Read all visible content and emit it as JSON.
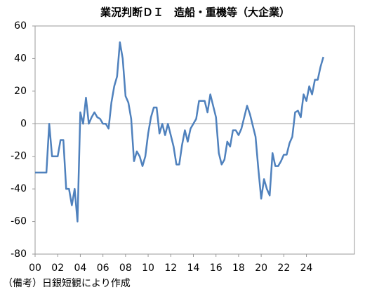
{
  "chart_data": {
    "type": "line",
    "title": "業況判断ＤＩ　造船・重機等（大企業）",
    "note": "（備考）日銀短観により作成",
    "color": "#4f81bd",
    "x": [
      2000,
      2000.25,
      2000.5,
      2000.75,
      2001,
      2001.25,
      2001.5,
      2001.75,
      2002,
      2002.25,
      2002.5,
      2002.75,
      2003,
      2003.25,
      2003.5,
      2003.75,
      2004,
      2004.25,
      2004.5,
      2004.75,
      2005,
      2005.25,
      2005.5,
      2005.75,
      2006,
      2006.25,
      2006.5,
      2006.75,
      2007,
      2007.25,
      2007.5,
      2007.75,
      2008,
      2008.25,
      2008.5,
      2008.75,
      2009,
      2009.25,
      2009.5,
      2009.75,
      2010,
      2010.25,
      2010.5,
      2010.75,
      2011,
      2011.25,
      2011.5,
      2011.75,
      2012,
      2012.25,
      2012.5,
      2012.75,
      2013,
      2013.25,
      2013.5,
      2013.75,
      2014,
      2014.25,
      2014.5,
      2014.75,
      2015,
      2015.25,
      2015.5,
      2015.75,
      2016,
      2016.25,
      2016.5,
      2016.75,
      2017,
      2017.25,
      2017.5,
      2017.75,
      2018,
      2018.25,
      2018.5,
      2018.75,
      2019,
      2019.25,
      2019.5,
      2019.75,
      2020,
      2020.25,
      2020.5,
      2020.75,
      2021,
      2021.25,
      2021.5,
      2021.75,
      2022,
      2022.25,
      2022.5,
      2022.75,
      2023,
      2023.25,
      2023.5,
      2023.75,
      2024,
      2024.25,
      2024.5,
      2024.75,
      2025,
      2025.25,
      2025.5
    ],
    "values": [
      -30,
      -30,
      -30,
      -30,
      -30,
      0,
      -20,
      -20,
      -20,
      -10,
      -10,
      -40,
      -40,
      -50,
      -40,
      -60,
      7,
      0,
      16,
      0,
      4,
      7,
      4,
      3,
      0,
      0,
      -3,
      13,
      23,
      29,
      50,
      40,
      17,
      13,
      3,
      -23,
      -17,
      -20,
      -26,
      -20,
      -6,
      4,
      10,
      10,
      -6,
      0,
      -7,
      0,
      -7,
      -14,
      -25,
      -25,
      -13,
      -4,
      -11,
      -3,
      0,
      3,
      14,
      14,
      14,
      7,
      18,
      11,
      4,
      -18,
      -25,
      -22,
      -11,
      -14,
      -4,
      -4,
      -7,
      -3,
      4,
      11,
      6,
      -1,
      -8,
      -28,
      -46,
      -34,
      -40,
      -44,
      -18,
      -26,
      -26,
      -23,
      -19,
      -19,
      -12,
      -8,
      7,
      8,
      4,
      18,
      14,
      23,
      18,
      27,
      27,
      35,
      41
    ],
    "xlim": [
      2000,
      2028.25
    ],
    "xticks": [
      {
        "value": 2000,
        "label": "00"
      },
      {
        "value": 2002,
        "label": "02"
      },
      {
        "value": 2004,
        "label": "04"
      },
      {
        "value": 2006,
        "label": "06"
      },
      {
        "value": 2008,
        "label": "08"
      },
      {
        "value": 2010,
        "label": "10"
      },
      {
        "value": 2012,
        "label": "12"
      },
      {
        "value": 2014,
        "label": "14"
      },
      {
        "value": 2016,
        "label": "16"
      },
      {
        "value": 2018,
        "label": "18"
      },
      {
        "value": 2020,
        "label": "20"
      },
      {
        "value": 2022,
        "label": "22"
      },
      {
        "value": 2024,
        "label": "24"
      }
    ],
    "ylim": [
      -80,
      60
    ],
    "yticks": [
      -80,
      -60,
      -40,
      -20,
      0,
      20,
      40,
      60
    ]
  }
}
